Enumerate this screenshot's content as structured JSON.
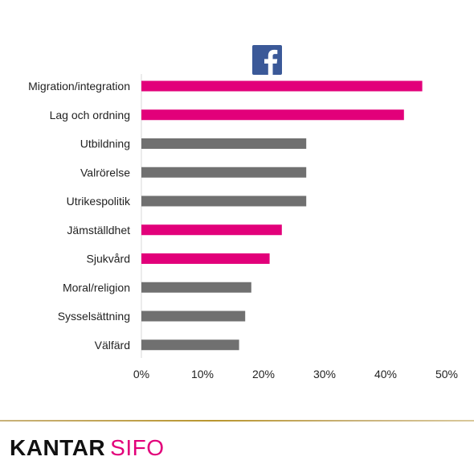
{
  "header": {
    "logo_icon": "facebook-icon"
  },
  "chart_data": {
    "type": "bar",
    "orientation": "horizontal",
    "title": "",
    "xlabel": "",
    "ylabel": "",
    "categories": [
      "Migration/integration",
      "Lag och ordning",
      "Utbildning",
      "Valrörelse",
      "Utrikespolitik",
      "Jämställdhet",
      "Sjukvård",
      "Moral/religion",
      "Sysselsättning",
      "Välfärd"
    ],
    "values": [
      46,
      43,
      27,
      27,
      27,
      23,
      21,
      18,
      17,
      16
    ],
    "highlight": [
      true,
      true,
      false,
      false,
      false,
      true,
      true,
      false,
      false,
      false
    ],
    "colors": {
      "highlight": "#e2007a",
      "normal": "#707070",
      "axis": "#d9d9d9"
    },
    "xlim": [
      0,
      50
    ],
    "xticks": [
      0,
      10,
      20,
      30,
      40,
      50
    ],
    "xtick_labels": [
      "0%",
      "10%",
      "20%",
      "30%",
      "40%",
      "50%"
    ],
    "grid": false,
    "legend": "none"
  },
  "footer": {
    "brand_main": "KANTAR",
    "brand_sub": "SIFO",
    "brand_color": "#e2007a"
  }
}
